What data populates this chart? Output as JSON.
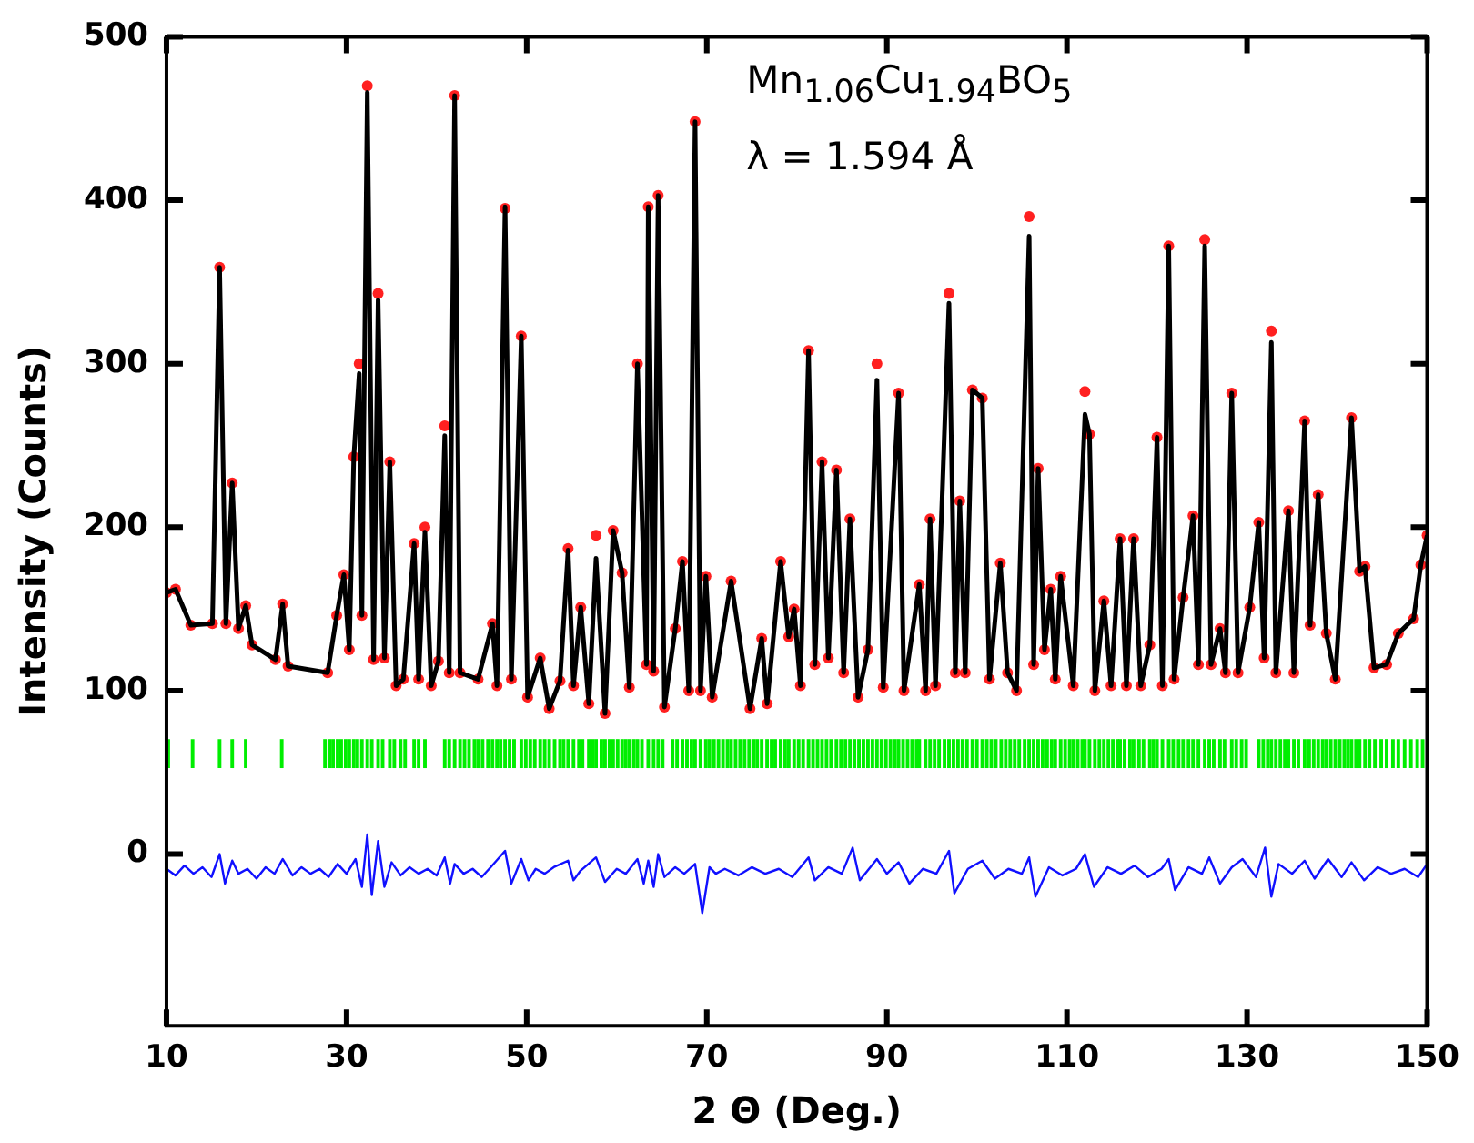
{
  "chart_data": {
    "type": "line",
    "xlabel": "2 Θ (Deg.)",
    "ylabel": "Intensity (Counts)",
    "annotations": [
      "Mn$_{1.06}$Cu$_{1.94}$BO$_{5}$",
      "λ = 1.594 Å"
    ],
    "xlim": [
      10,
      150
    ],
    "xticks": [
      10,
      30,
      50,
      70,
      90,
      110,
      130,
      150
    ],
    "ylim": [
      -105,
      500
    ],
    "yticks": [
      0,
      100,
      200,
      300,
      400,
      500
    ],
    "grid": false,
    "legend": false,
    "series": [
      {
        "type": "scatter",
        "marker": "circle",
        "color": "#ff2020",
        "x": [
          10,
          11,
          12.7,
          15.1,
          15.9,
          16.6,
          17.3,
          18.0,
          18.8,
          19.5,
          22.1,
          22.9,
          23.5,
          27.9,
          28.9,
          29.7,
          30.3,
          30.8,
          31.4,
          31.7,
          32.3,
          33.0,
          33.5,
          34.2,
          34.8,
          35.5,
          36.3,
          37.5,
          38.0,
          38.7,
          39.4,
          40.2,
          40.9,
          41.4,
          42.0,
          42.6,
          44.6,
          46.2,
          46.7,
          47.6,
          48.3,
          49.4,
          50.1,
          51.5,
          52.5,
          53.7,
          54.6,
          55.2,
          56.0,
          56.9,
          57.7,
          58.7,
          59.6,
          60.6,
          61.4,
          62.3,
          63.3,
          63.5,
          64.1,
          64.6,
          65.3,
          66.5,
          67.3,
          68.0,
          68.7,
          69.3,
          69.9,
          70.6,
          72.7,
          74.8,
          76.1,
          76.7,
          78.2,
          79.1,
          79.7,
          80.4,
          81.3,
          82.0,
          82.8,
          83.5,
          84.4,
          85.2,
          85.9,
          86.8,
          87.9,
          88.9,
          89.6,
          91.3,
          91.9,
          93.6,
          94.3,
          94.8,
          95.4,
          96.9,
          97.6,
          98.1,
          98.7,
          99.5,
          100.6,
          101.4,
          102.6,
          103.4,
          104.4,
          105.8,
          106.3,
          106.8,
          107.5,
          108.2,
          108.7,
          109.3,
          110.7,
          112.0,
          112.5,
          113.1,
          114.1,
          114.9,
          115.9,
          116.6,
          117.4,
          118.2,
          119.2,
          120.0,
          120.6,
          121.3,
          121.9,
          122.9,
          124.0,
          124.6,
          125.3,
          126.0,
          127.0,
          127.6,
          128.3,
          129.0,
          130.3,
          131.3,
          131.9,
          132.7,
          133.2,
          134.6,
          135.2,
          136.4,
          137.0,
          137.9,
          138.8,
          139.8,
          141.6,
          142.5,
          143.1,
          144.1,
          145.5,
          146.8,
          148.5,
          149.3,
          150
        ],
        "values": [
          160,
          162,
          140,
          141,
          359,
          141,
          227,
          138,
          152,
          128,
          119,
          153,
          115,
          111,
          146,
          171,
          125,
          243,
          300,
          146,
          470,
          119,
          343,
          120,
          240,
          103,
          107,
          190,
          107,
          200,
          103,
          118,
          262,
          111,
          464,
          111,
          107,
          141,
          103,
          395,
          107,
          317,
          96,
          120,
          89,
          106,
          187,
          103,
          151,
          92,
          195,
          86,
          198,
          172,
          102,
          300,
          116,
          396,
          112,
          403,
          90,
          138,
          179,
          100,
          448,
          100,
          170,
          96,
          167,
          89,
          132,
          92,
          179,
          133,
          150,
          103,
          308,
          116,
          240,
          120,
          235,
          111,
          205,
          96,
          125,
          300,
          102,
          282,
          100,
          165,
          100,
          205,
          103,
          343,
          111,
          216,
          111,
          284,
          279,
          107,
          178,
          111,
          100,
          390,
          116,
          236,
          125,
          162,
          107,
          170,
          103,
          283,
          257,
          100,
          155,
          103,
          193,
          103,
          193,
          103,
          128,
          255,
          103,
          372,
          107,
          157,
          207,
          116,
          376,
          116,
          138,
          111,
          282,
          111,
          151,
          203,
          120,
          320,
          111,
          210,
          111,
          265,
          140,
          220,
          135,
          107,
          267,
          173,
          176,
          114,
          116,
          135,
          144,
          177,
          195
        ]
      },
      {
        "marker": "none",
        "line_style": "solid",
        "color": "#000000",
        "x": [
          10,
          11,
          12.7,
          15.1,
          15.9,
          16.6,
          17.3,
          18.0,
          18.8,
          19.5,
          22.1,
          22.9,
          23.5,
          27.9,
          28.9,
          29.7,
          30.3,
          30.8,
          31.4,
          31.7,
          32.3,
          33.0,
          33.5,
          34.2,
          34.8,
          35.5,
          36.3,
          37.5,
          38.0,
          38.7,
          39.4,
          40.2,
          40.9,
          41.4,
          42.0,
          42.6,
          44.6,
          46.2,
          46.7,
          47.6,
          48.3,
          49.4,
          50.1,
          51.5,
          52.5,
          53.7,
          54.6,
          55.2,
          56.0,
          56.9,
          57.7,
          58.7,
          59.6,
          60.6,
          61.4,
          62.3,
          63.3,
          63.5,
          64.1,
          64.6,
          65.3,
          66.5,
          67.3,
          68.0,
          68.7,
          69.3,
          69.9,
          70.6,
          72.7,
          74.8,
          76.1,
          76.7,
          78.2,
          79.1,
          79.7,
          80.4,
          81.3,
          82.0,
          82.8,
          83.5,
          84.4,
          85.2,
          85.9,
          86.8,
          87.9,
          88.9,
          89.6,
          91.3,
          91.9,
          93.6,
          94.3,
          94.8,
          95.4,
          96.9,
          97.6,
          98.1,
          98.7,
          99.5,
          100.6,
          101.4,
          102.6,
          103.4,
          104.4,
          105.8,
          106.3,
          106.8,
          107.5,
          108.2,
          108.7,
          109.3,
          110.7,
          112.0,
          112.5,
          113.1,
          114.1,
          114.9,
          115.9,
          116.6,
          117.4,
          118.2,
          119.2,
          120.0,
          120.6,
          121.3,
          121.9,
          122.9,
          124.0,
          124.6,
          125.3,
          126.0,
          127.0,
          127.6,
          128.3,
          129.0,
          130.3,
          131.3,
          131.9,
          132.7,
          133.2,
          134.6,
          135.2,
          136.4,
          137.0,
          137.9,
          138.8,
          139.8,
          141.6,
          142.5,
          143.1,
          144.1,
          145.5,
          146.8,
          148.5,
          149.3,
          150
        ],
        "values": [
          160,
          162,
          140,
          141,
          359,
          141,
          227,
          138,
          152,
          128,
          119,
          153,
          115,
          111,
          146,
          171,
          125,
          243,
          294,
          146,
          466,
          119,
          339,
          120,
          240,
          103,
          107,
          190,
          107,
          197,
          103,
          118,
          256,
          111,
          464,
          111,
          107,
          141,
          103,
          396,
          107,
          317,
          96,
          120,
          89,
          106,
          186,
          103,
          151,
          92,
          181,
          86,
          198,
          172,
          102,
          300,
          116,
          396,
          112,
          403,
          90,
          138,
          179,
          100,
          448,
          100,
          170,
          96,
          167,
          89,
          132,
          92,
          179,
          133,
          150,
          103,
          308,
          116,
          240,
          120,
          235,
          111,
          205,
          96,
          125,
          290,
          102,
          282,
          100,
          165,
          100,
          205,
          103,
          337,
          111,
          216,
          111,
          284,
          279,
          107,
          178,
          111,
          100,
          378,
          116,
          236,
          125,
          162,
          107,
          170,
          103,
          269,
          257,
          100,
          155,
          103,
          193,
          103,
          193,
          103,
          128,
          255,
          103,
          372,
          107,
          157,
          207,
          116,
          372,
          116,
          138,
          111,
          282,
          111,
          151,
          203,
          120,
          313,
          111,
          210,
          111,
          265,
          140,
          220,
          135,
          107,
          267,
          173,
          176,
          114,
          116,
          135,
          144,
          177,
          195
        ]
      },
      {
        "type": "bar",
        "color": "#00ee00",
        "x": [
          10.2,
          12.9,
          15.9,
          17.3,
          18.8,
          22.8,
          27.6,
          28.1,
          28.5,
          29.0,
          29.4,
          29.9,
          30.3,
          30.8,
          31.2,
          31.7,
          32.3,
          32.8,
          33.5,
          34.0,
          34.8,
          35.3,
          36.0,
          36.5,
          37.5,
          38.0,
          38.7,
          40.9,
          41.4,
          42.0,
          42.6,
          43.1,
          43.6,
          44.2,
          44.6,
          45.1,
          45.7,
          46.2,
          46.7,
          47.1,
          47.6,
          48.1,
          48.6,
          49.4,
          49.9,
          50.4,
          50.9,
          51.5,
          52.0,
          52.5,
          53.1,
          53.7,
          54.1,
          54.6,
          55.2,
          55.8,
          56.2,
          56.9,
          57.3,
          57.7,
          58.3,
          58.7,
          59.2,
          59.6,
          60.1,
          60.6,
          61.0,
          61.4,
          61.9,
          62.3,
          62.8,
          63.5,
          64.1,
          64.6,
          65.1,
          66.2,
          66.7,
          67.3,
          67.8,
          68.3,
          68.7,
          69.3,
          69.9,
          70.3,
          70.8,
          71.3,
          71.8,
          72.3,
          72.7,
          73.2,
          73.7,
          74.2,
          74.7,
          75.2,
          75.6,
          76.1,
          76.7,
          77.2,
          77.6,
          78.2,
          78.7,
          79.1,
          79.7,
          80.2,
          80.7,
          81.3,
          81.8,
          82.3,
          82.8,
          83.3,
          83.8,
          84.4,
          84.9,
          85.4,
          85.9,
          86.4,
          86.9,
          87.4,
          87.9,
          88.4,
          88.9,
          89.4,
          89.9,
          90.4,
          90.9,
          91.3,
          91.8,
          92.3,
          92.8,
          93.3,
          93.6,
          94.3,
          94.8,
          95.3,
          95.8,
          96.4,
          96.9,
          97.4,
          97.9,
          98.4,
          98.9,
          99.5,
          100.0,
          100.6,
          101.1,
          101.6,
          102.1,
          102.7,
          103.2,
          103.7,
          104.2,
          104.7,
          105.3,
          105.8,
          106.3,
          106.8,
          107.3,
          107.8,
          108.3,
          108.7,
          109.3,
          109.8,
          110.3,
          110.7,
          111.2,
          111.7,
          112.0,
          112.5,
          113.1,
          113.6,
          114.1,
          114.6,
          115.1,
          115.6,
          115.9,
          116.4,
          117.0,
          117.4,
          118.0,
          118.5,
          119.2,
          119.6,
          120.0,
          120.6,
          121.3,
          121.8,
          122.4,
          122.9,
          123.5,
          124.0,
          124.6,
          125.3,
          125.8,
          126.3,
          127.0,
          127.5,
          128.3,
          128.8,
          129.4,
          129.9,
          131.3,
          131.8,
          132.3,
          132.7,
          133.2,
          133.7,
          134.2,
          134.6,
          135.2,
          135.7,
          136.4,
          136.9,
          137.4,
          137.9,
          138.4,
          138.8,
          139.3,
          139.8,
          140.3,
          140.8,
          141.2,
          141.6,
          142.1,
          142.5,
          143.1,
          143.6,
          144.2,
          144.9,
          145.5,
          146.2,
          146.8,
          147.5,
          148.2,
          148.9,
          149.5
        ],
        "base": [
          53,
          53,
          53,
          53,
          53,
          53,
          53,
          53,
          53,
          53,
          53,
          53,
          53,
          53,
          53,
          53,
          53,
          53,
          53,
          53,
          53,
          53,
          53,
          53,
          53,
          53,
          53,
          53,
          53,
          53,
          53,
          53,
          53,
          53,
          53,
          53,
          53,
          53,
          53,
          53,
          53,
          53,
          53,
          53,
          53,
          53,
          53,
          53,
          53,
          53,
          53,
          53,
          53,
          53,
          53,
          53,
          53,
          53,
          53,
          53,
          53,
          53,
          53,
          53,
          53,
          53,
          53,
          53,
          53,
          53,
          53,
          53,
          53,
          53,
          53,
          53,
          53,
          53,
          53,
          53,
          53,
          53,
          53,
          53,
          53,
          53,
          53,
          53,
          53,
          53,
          53,
          53,
          53,
          53,
          53,
          53,
          53,
          53,
          53,
          53,
          53,
          53,
          53,
          53,
          53,
          53,
          53,
          53,
          53,
          53,
          53,
          53,
          53,
          53,
          53,
          53,
          53,
          53,
          53,
          53,
          53,
          53,
          53,
          53,
          53,
          53,
          53,
          53,
          53,
          53,
          53,
          53,
          53,
          53,
          53,
          53,
          53,
          53,
          53,
          53,
          53,
          53,
          53,
          53,
          53,
          53,
          53,
          53,
          53,
          53,
          53,
          53,
          53,
          53,
          53,
          53,
          53,
          53,
          53,
          53,
          53,
          53,
          53,
          53,
          53,
          53,
          53,
          53,
          53,
          53,
          53,
          53,
          53,
          53,
          53,
          53,
          53,
          53,
          53,
          53,
          53,
          53,
          53,
          53,
          53,
          53,
          53,
          53,
          53,
          53,
          53,
          53,
          53,
          53,
          53,
          53,
          53,
          53,
          53,
          53,
          53,
          53,
          53,
          53,
          53,
          53,
          53,
          53,
          53,
          53,
          53,
          53,
          53,
          53,
          53,
          53,
          53,
          53,
          53,
          53,
          53,
          53,
          53,
          53,
          53,
          53,
          53,
          53,
          53,
          53,
          53,
          53,
          53,
          53,
          53
        ],
        "values": [
          17,
          17,
          17,
          17,
          17,
          17,
          17,
          17,
          17,
          17,
          17,
          17,
          17,
          17,
          17,
          17,
          17,
          17,
          17,
          17,
          17,
          17,
          17,
          17,
          17,
          17,
          17,
          17,
          17,
          17,
          17,
          17,
          17,
          17,
          17,
          17,
          17,
          17,
          17,
          17,
          17,
          17,
          17,
          17,
          17,
          17,
          17,
          17,
          17,
          17,
          17,
          17,
          17,
          17,
          17,
          17,
          17,
          17,
          17,
          17,
          17,
          17,
          17,
          17,
          17,
          17,
          17,
          17,
          17,
          17,
          17,
          17,
          17,
          17,
          17,
          17,
          17,
          17,
          17,
          17,
          17,
          17,
          17,
          17,
          17,
          17,
          17,
          17,
          17,
          17,
          17,
          17,
          17,
          17,
          17,
          17,
          17,
          17,
          17,
          17,
          17,
          17,
          17,
          17,
          17,
          17,
          17,
          17,
          17,
          17,
          17,
          17,
          17,
          17,
          17,
          17,
          17,
          17,
          17,
          17,
          17,
          17,
          17,
          17,
          17,
          17,
          17,
          17,
          17,
          17,
          17,
          17,
          17,
          17,
          17,
          17,
          17,
          17,
          17,
          17,
          17,
          17,
          17,
          17,
          17,
          17,
          17,
          17,
          17,
          17,
          17,
          17,
          17,
          17,
          17,
          17,
          17,
          17,
          17,
          17,
          17,
          17,
          17,
          17,
          17,
          17,
          17,
          17,
          17,
          17,
          17,
          17,
          17,
          17,
          17,
          17,
          17,
          17,
          17,
          17,
          17,
          17,
          17,
          17,
          17,
          17,
          17,
          17,
          17,
          17,
          17,
          17,
          17,
          17,
          17,
          17,
          17,
          17,
          17,
          17,
          17,
          17,
          17,
          17,
          17,
          17,
          17,
          17,
          17,
          17,
          17,
          17,
          17,
          17,
          17,
          17,
          17,
          17,
          17,
          17,
          17,
          17,
          17,
          17,
          17,
          17,
          17,
          17,
          17,
          17,
          17,
          17,
          17,
          17,
          17
        ]
      },
      {
        "marker": "none",
        "line_style": "solid",
        "color": "#1010ff",
        "x": [
          10,
          11,
          12,
          13,
          14,
          15,
          15.9,
          16.5,
          17.3,
          18,
          19,
          20,
          21,
          22,
          22.9,
          24,
          25,
          26,
          27,
          28,
          29,
          30,
          31,
          31.7,
          32.3,
          32.8,
          33.5,
          34.2,
          35,
          36,
          37,
          38,
          39,
          40,
          40.9,
          41.5,
          42,
          43,
          44,
          45,
          46,
          47.6,
          48.3,
          49.4,
          50.2,
          51,
          52,
          53,
          54.6,
          55.2,
          56,
          57.7,
          58.7,
          60,
          61,
          62.3,
          63,
          63.5,
          64.1,
          64.6,
          65.3,
          66.5,
          67.5,
          68.7,
          69.5,
          70.3,
          71,
          72,
          73.5,
          75,
          76.5,
          78,
          79.5,
          81.3,
          82,
          83.5,
          85,
          86.2,
          87,
          88.9,
          90,
          91.3,
          92.5,
          94,
          95.5,
          96.9,
          97.5,
          99,
          100.6,
          102,
          103.5,
          105,
          105.8,
          106.5,
          108,
          109.5,
          111,
          112,
          113,
          114.5,
          116,
          117.5,
          119,
          120.5,
          121.3,
          122,
          123.5,
          125,
          125.8,
          127,
          128.3,
          129.5,
          131,
          132,
          132.7,
          133.5,
          135,
          136.4,
          137.5,
          139,
          140.5,
          141.6,
          143,
          144.5,
          146,
          147.5,
          149,
          150
        ],
        "values": [
          -9,
          -13,
          -7,
          -12,
          -8,
          -14,
          0,
          -18,
          -4,
          -12,
          -9,
          -15,
          -8,
          -12,
          -3,
          -13,
          -8,
          -12,
          -9,
          -14,
          -6,
          -12,
          -3,
          -20,
          12,
          -25,
          8,
          -20,
          -5,
          -13,
          -8,
          -12,
          -9,
          -13,
          -2,
          -18,
          -6,
          -12,
          -9,
          -14,
          -8,
          2,
          -18,
          -3,
          -16,
          -9,
          -12,
          -8,
          -4,
          -16,
          -10,
          -2,
          -17,
          -9,
          -12,
          -3,
          -18,
          -4,
          -20,
          0,
          -14,
          -8,
          -12,
          -6,
          -36,
          -8,
          -12,
          -9,
          -13,
          -8,
          -12,
          -9,
          -14,
          -2,
          -16,
          -8,
          -12,
          4,
          -16,
          -3,
          -12,
          -5,
          -18,
          -9,
          -12,
          2,
          -24,
          -9,
          -4,
          -15,
          -9,
          -12,
          -2,
          -26,
          -8,
          -13,
          -9,
          0,
          -20,
          -8,
          -12,
          -7,
          -14,
          -9,
          -3,
          -22,
          -8,
          -12,
          -2,
          -18,
          -8,
          -3,
          -14,
          4,
          -26,
          -6,
          -12,
          -4,
          -15,
          -3,
          -14,
          -5,
          -16,
          -8,
          -12,
          -9,
          -14,
          -6
        ]
      }
    ]
  }
}
